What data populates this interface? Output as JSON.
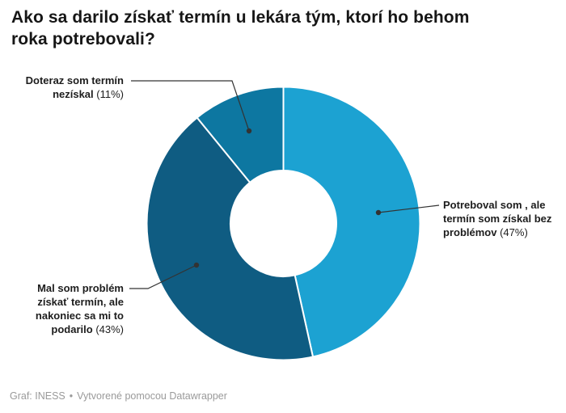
{
  "header": {
    "title": "Ako sa darilo získať termín u lekára tým, ktorí ho behom\nroka potrebovali?"
  },
  "chart_data": {
    "type": "pie",
    "subtype": "donut",
    "title": "Ako sa darilo získať termín u lekára tým, ktorí ho behom roka potrebovali?",
    "unit": "%",
    "start": "top-clockwise",
    "legend_position": "callouts",
    "segments": [
      {
        "label": "Potreboval som , ale termín som získal bez problémov",
        "value": 47,
        "color": "#1ca2d2"
      },
      {
        "label": "Mal som problém získať termín, ale nakoniec sa mi to podarilo",
        "value": 43,
        "color": "#0f5c82"
      },
      {
        "label": "Doteraz som termín nezískal",
        "value": 11,
        "color": "#0d77a1"
      }
    ]
  },
  "callouts": [
    {
      "text": "Doteraz som termín\nnezískal",
      "pct": "(11%)"
    },
    {
      "text": "Potreboval som , ale\ntermín som získal bez\nproblémov",
      "pct": "(47%)"
    },
    {
      "text": "Mal som problém\nzískať termín, ale\nnakoniec sa mi to\npodarilo",
      "pct": "(43%)"
    }
  ],
  "footer": {
    "source": "Graf: INESS",
    "separator": "•",
    "attribution": "Vytvorené pomocou Datawrapper"
  },
  "colors": {
    "connector": "#333333",
    "separator": "#ffffff"
  }
}
